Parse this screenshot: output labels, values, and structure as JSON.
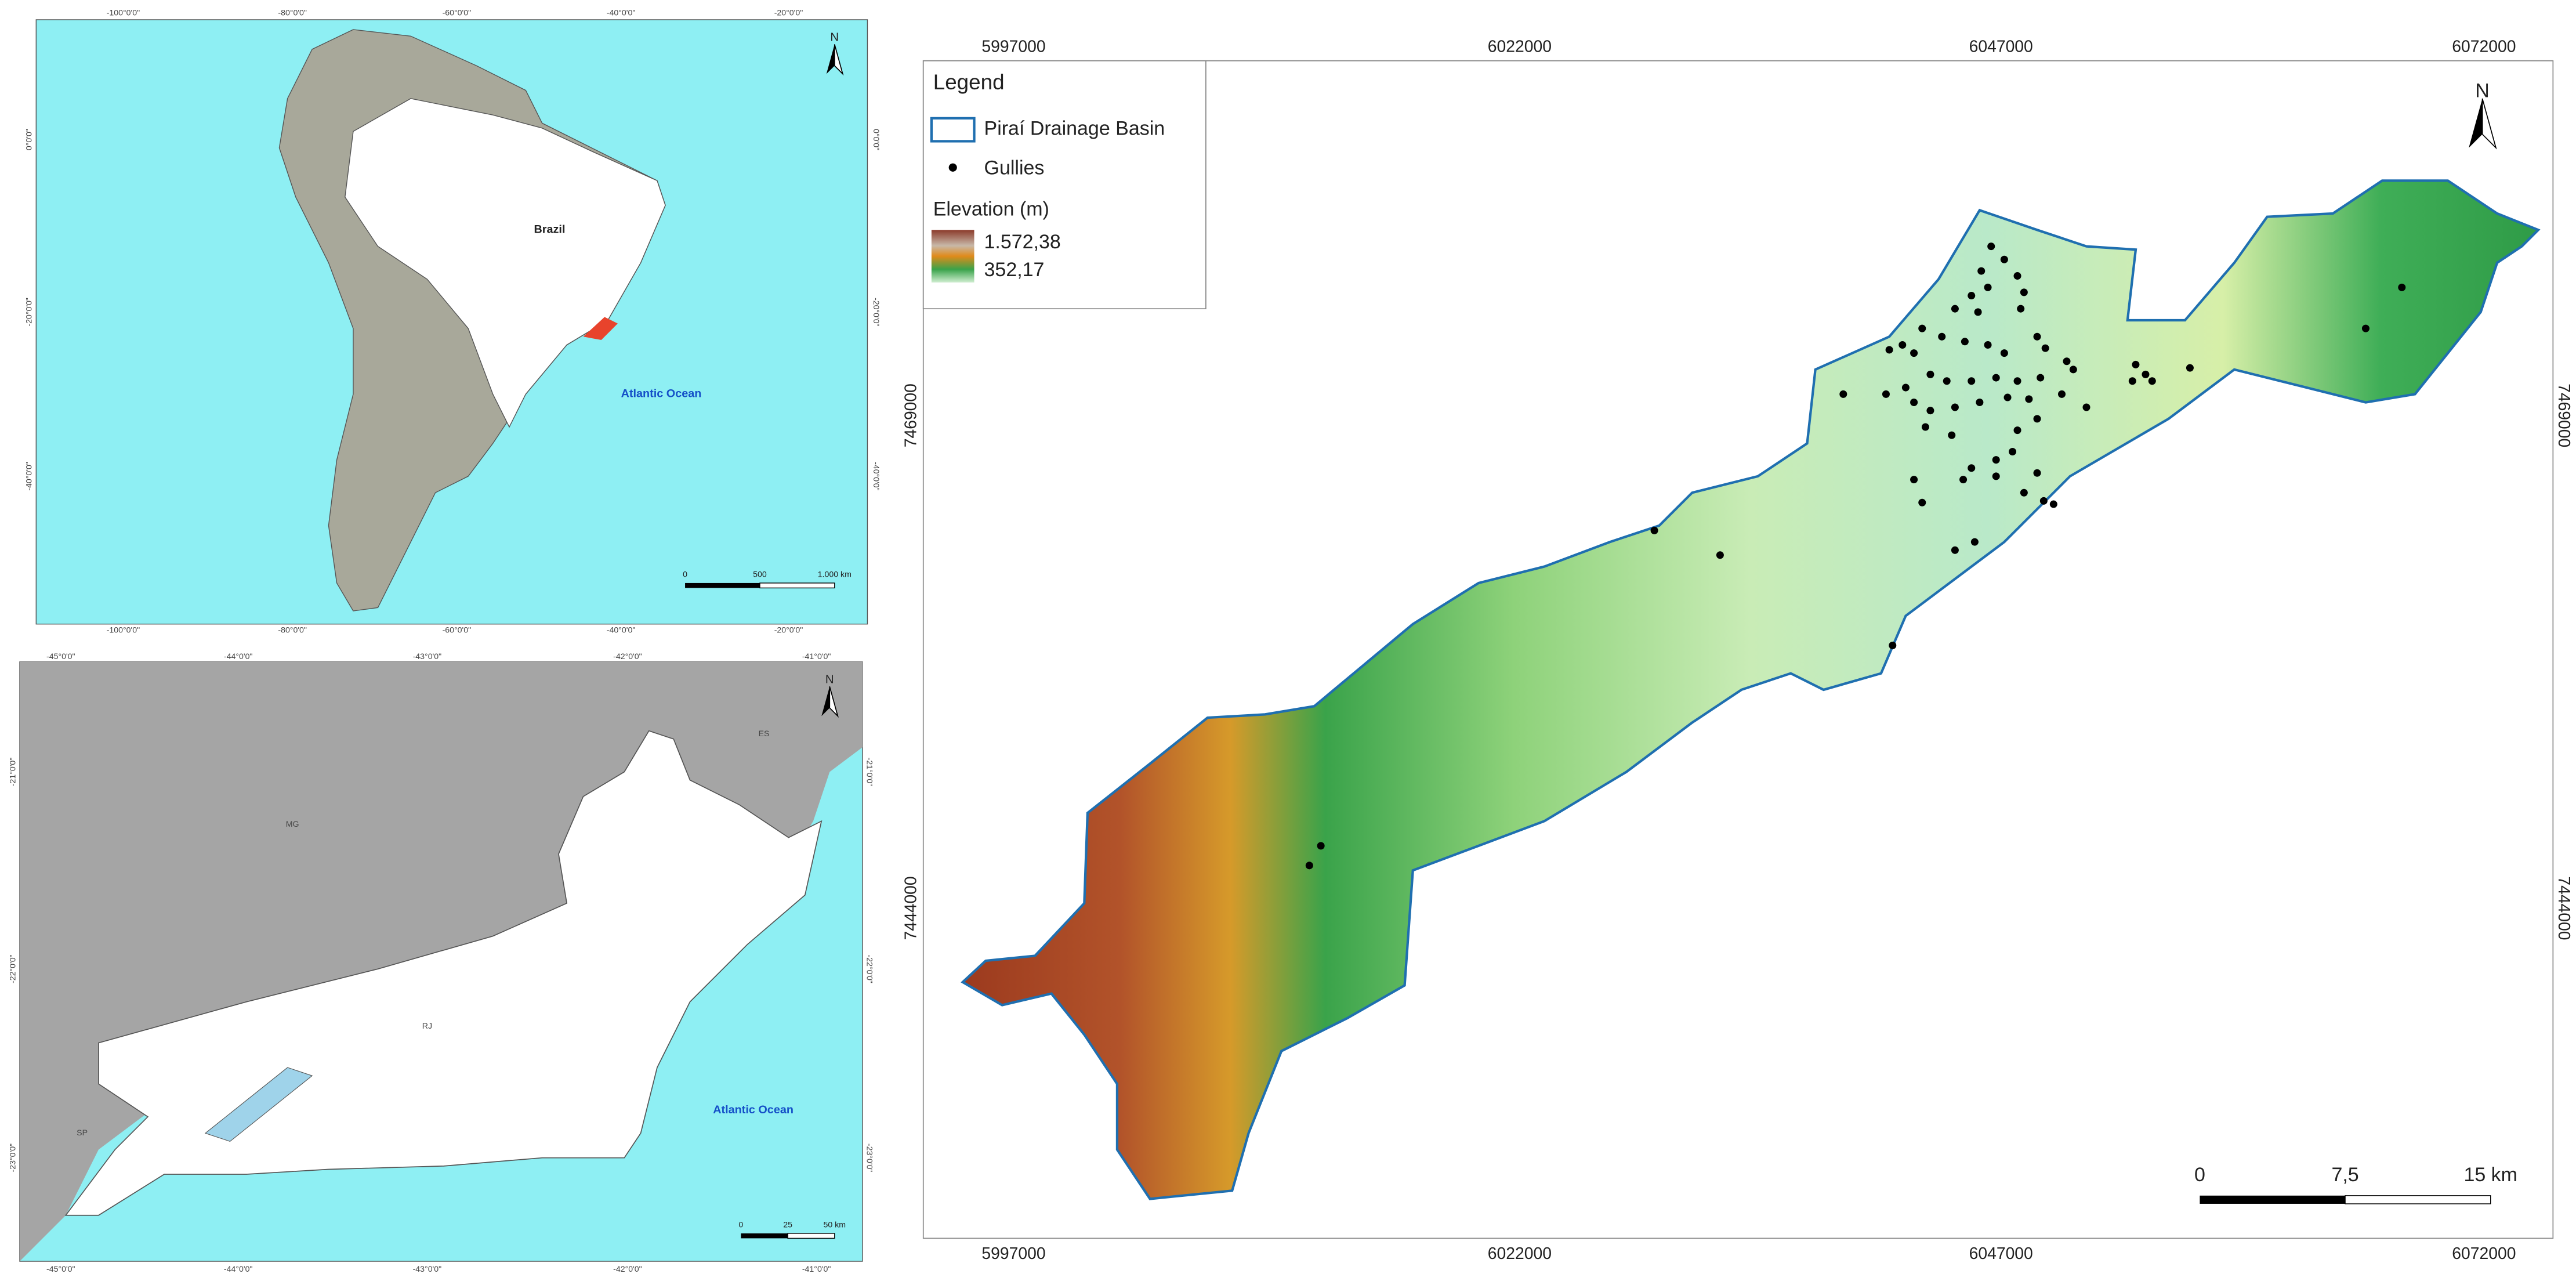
{
  "south_america_inset": {
    "top_labels": [
      "-100°0'0\"",
      "-80°0'0\"",
      "-60°0'0\"",
      "-40°0'0\"",
      "-20°0'0\""
    ],
    "side_labels": [
      "0°0'0\"",
      "-20°0'0\"",
      "-40°0'0\""
    ],
    "country_label": "Brazil",
    "ocean_label": "Atlantic Ocean",
    "north": "N",
    "scale_labels": [
      "0",
      "500",
      "1.000 km"
    ]
  },
  "rio_inset": {
    "top_labels": [
      "-45°0'0\"",
      "-44°0'0\"",
      "-43°0'0\"",
      "-42°0'0\"",
      "-41°0'0\""
    ],
    "side_labels": [
      "-21°0'0\"",
      "-22°0'0\"",
      "-23°0'0\""
    ],
    "state_labels": [
      "MG",
      "ES",
      "RJ",
      "SP"
    ],
    "ocean_label": "Atlantic Ocean",
    "north": "N",
    "scale_labels": [
      "0",
      "25",
      "50 km"
    ]
  },
  "main_map": {
    "x_labels": [
      "5997000",
      "6022000",
      "6047000",
      "6072000"
    ],
    "y_labels": [
      "7469000",
      "7444000"
    ],
    "legend": {
      "title": "Legend",
      "basin": "Piraí Drainage Basin",
      "gullies": "Gullies",
      "elevation_title": "Elevation (m)",
      "elevation_max": "1.572,38",
      "elevation_min": "352,17"
    },
    "north": "N",
    "scale_labels": [
      "0",
      "7,5",
      "15 km"
    ]
  }
}
